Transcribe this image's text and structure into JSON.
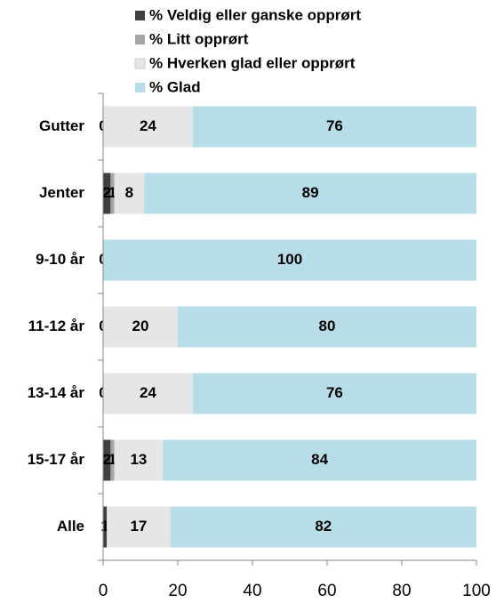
{
  "chart_data": {
    "type": "stacked-barh",
    "categories": [
      "Gutter",
      "Jenter",
      "9-10 år",
      "11-12 år",
      "13-14 år",
      "15-17 år",
      "Alle"
    ],
    "series": [
      {
        "name": "% Veldig eller ganske opprørt",
        "color": "#404040",
        "values": [
          0,
          2,
          0,
          0,
          0,
          2,
          1
        ]
      },
      {
        "name": "% Litt opprørt",
        "color": "#a6a6a6",
        "values": [
          0,
          1,
          0,
          0,
          0,
          1,
          0
        ]
      },
      {
        "name": "% Hverken glad eller opprørt",
        "color": "#e6e6e6",
        "values": [
          24,
          8,
          0,
          20,
          24,
          13,
          17
        ]
      },
      {
        "name": "% Glad",
        "color": "#b7dde8",
        "values": [
          76,
          89,
          100,
          80,
          76,
          84,
          82
        ]
      }
    ],
    "xlim": [
      0,
      100
    ],
    "xticks": [
      0,
      20,
      40,
      60,
      80,
      100
    ]
  }
}
